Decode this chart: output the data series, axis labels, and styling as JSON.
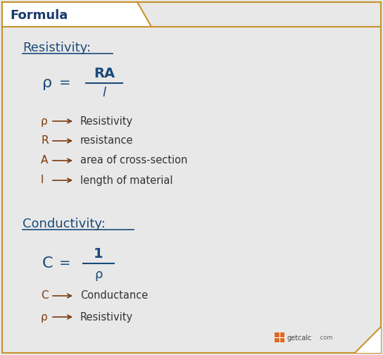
{
  "bg_color": "#e8e8e8",
  "border_color": "#c8922a",
  "title_color": "#1a4a7a",
  "formula_color": "#1a4a7a",
  "arrow_color": "#7a3a10",
  "desc_color": "#333333",
  "header_text": "Formula",
  "header_text_color": "#1a3a6b",
  "resistivity_title": "Resistivity:",
  "conductivity_title": "Conductivity:",
  "res_items": [
    [
      "ρ",
      "Resistivity"
    ],
    [
      "R",
      "resistance"
    ],
    [
      "A",
      "area of cross-section"
    ],
    [
      "l",
      "length of material"
    ]
  ],
  "cond_items": [
    [
      "C",
      "Conductance"
    ],
    [
      "ρ",
      "Resistivity"
    ]
  ],
  "fig_w": 5.44,
  "fig_h": 5.04,
  "dpi": 100
}
